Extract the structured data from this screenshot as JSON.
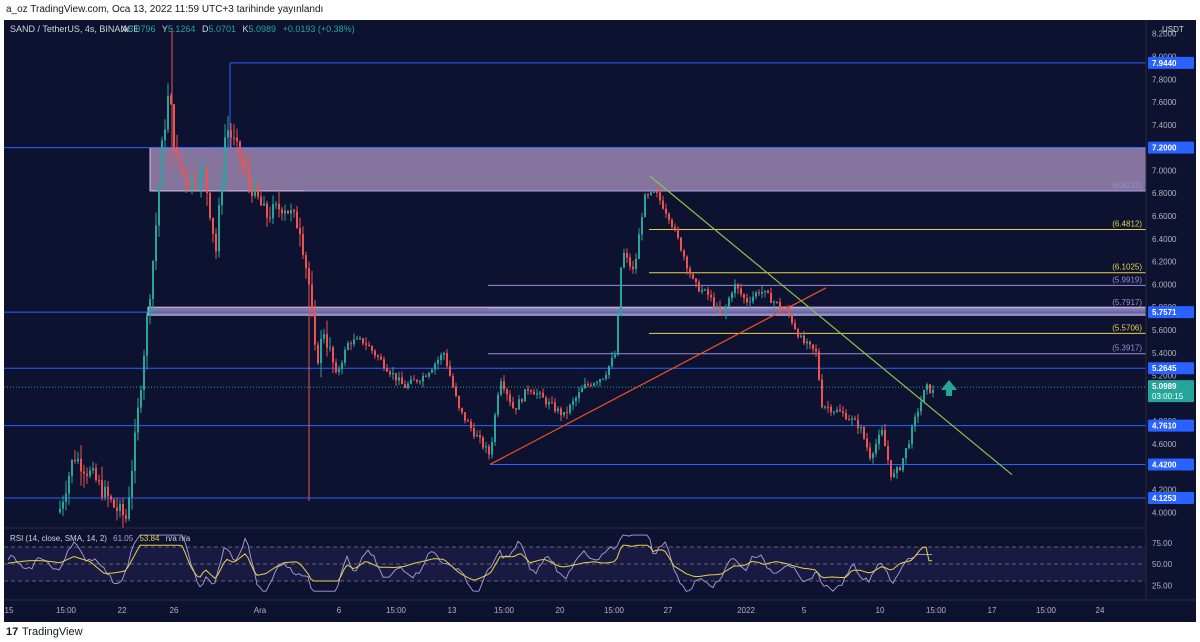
{
  "header": {
    "publish_text": "a_oz TradingView.com, Oca 13, 2022 11:59 UTC+3 tarihinde yayınlandı"
  },
  "footer": {
    "logo": "17",
    "brand": "TradingView"
  },
  "chart_data": {
    "type": "candlestick",
    "symbol": "SAND / TetherUS, 4s, BINANCE",
    "ohlc": {
      "o_label": "A",
      "o": "5.0796",
      "h_label": "Y",
      "h": "5.1264",
      "l_label": "D",
      "l": "5.0701",
      "c_label": "K",
      "c": "5.0989",
      "change": "+0.0193 (+0.38%)"
    },
    "currency": "USDT",
    "ylim": [
      3.88,
      8.32
    ],
    "y_ticks": [
      "8.2000",
      "8.0000",
      "7.8000",
      "7.6000",
      "7.4000",
      "7.2000",
      "7.0000",
      "6.8000",
      "6.6000",
      "6.4000",
      "6.2000",
      "6.0000",
      "5.8000",
      "5.6000",
      "5.4000",
      "5.2000",
      "5.0000",
      "4.8000",
      "4.6000",
      "4.4000",
      "4.2000",
      "4.0000"
    ],
    "x_ticks": [
      "15",
      "15:00",
      "22",
      "26",
      "Ara",
      "6",
      "15:00",
      "13",
      "15:00",
      "20",
      "15:00",
      "27",
      "2022",
      "5",
      "10",
      "15:00",
      "17",
      "15:00",
      "24"
    ],
    "price_markers": [
      {
        "label": "7.9440",
        "value": 7.944
      },
      {
        "label": "7.2000",
        "value": 7.2
      },
      {
        "label": "5.7571",
        "value": 5.7571
      },
      {
        "label": "5.2645",
        "value": 5.2645
      },
      {
        "label": "4.7610",
        "value": 4.761
      },
      {
        "label": "4.4200",
        "value": 4.42
      },
      {
        "label": "4.1253",
        "value": 4.1253
      }
    ],
    "current_price": {
      "label": "5.0989",
      "timer": "03:00:15",
      "value": 5.0989
    },
    "fib_levels": [
      {
        "label": "(6.8212)",
        "value": 6.8212,
        "color": "#9a8fd8"
      },
      {
        "label": "(6.4812)",
        "value": 6.4812,
        "color": "#e8d34a"
      },
      {
        "label": "(6.1025)",
        "value": 6.1025,
        "color": "#e8d34a"
      },
      {
        "label": "(5.9919)",
        "value": 5.9919,
        "color": "#9a8fd8"
      },
      {
        "label": "(5.7917)",
        "value": 5.7917,
        "color": "#9a8fd8"
      },
      {
        "label": "(5.5706)",
        "value": 5.5706,
        "color": "#e8d34a"
      },
      {
        "label": "(5.3917)",
        "value": 5.3917,
        "color": "#9a8fd8"
      }
    ],
    "zones": [
      {
        "name": "resistance-zone",
        "top": 7.2,
        "bottom": 6.82
      },
      {
        "name": "mid-zone",
        "top": 5.8,
        "bottom": 5.73
      }
    ],
    "rsi": {
      "label": "RSI (14, close, SMA, 14, 2)",
      "rsi_value": "61.05",
      "sma_value": "53.84",
      "extra": "n/a n/a",
      "ticks": [
        "75.00",
        "50.00",
        "25.00"
      ],
      "current": 61.05,
      "sma": 53.84
    },
    "colors": {
      "up": "#26a69a",
      "down": "#ef5350",
      "accent": "#2962ff",
      "trend_green": "#8bc34a",
      "trend_red": "#f4511e",
      "zone": "#a08cc0"
    }
  }
}
